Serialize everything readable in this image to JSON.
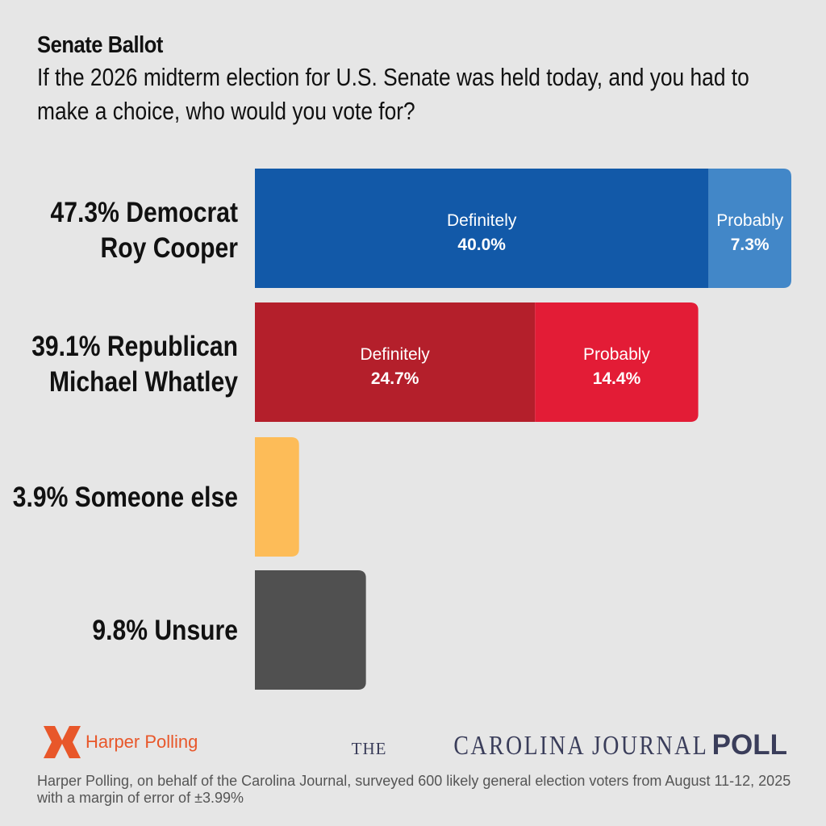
{
  "chart_data": {
    "type": "bar",
    "orientation": "horizontal",
    "stacked": true,
    "title": "Senate Ballot",
    "subtitle": "If the 2026 midterm election for U.S. Senate was held today, and you had to make a choice, who would you vote for?",
    "xlim": [
      0,
      47.3
    ],
    "categories": [
      {
        "line1": "47.3% Democrat",
        "line2": "Roy Cooper",
        "total": 47.3
      },
      {
        "line1": "39.1% Republican",
        "line2": "Michael Whatley",
        "total": 39.1
      },
      {
        "line1": "3.9% Someone else",
        "line2": "",
        "total": 3.9
      },
      {
        "line1": "9.8% Unsure",
        "line2": "",
        "total": 9.8
      }
    ],
    "segments": [
      [
        {
          "name": "Definitely",
          "value": 40.0,
          "label": "40.0%",
          "color": "#1259a8"
        },
        {
          "name": "Probably",
          "value": 7.3,
          "label": "7.3%",
          "color": "#4287c8"
        }
      ],
      [
        {
          "name": "Definitely",
          "value": 24.7,
          "label": "24.7%",
          "color": "#b41f2b"
        },
        {
          "name": "Probably",
          "value": 14.4,
          "label": "14.4%",
          "color": "#e31c36"
        }
      ],
      [
        {
          "name": "",
          "value": 3.9,
          "label": "",
          "color": "#fdbc58"
        }
      ],
      [
        {
          "name": "",
          "value": 9.8,
          "label": "",
          "color": "#505050"
        }
      ]
    ]
  },
  "footer": {
    "pollster": "Harper Polling",
    "publisher_the": "THE",
    "publisher_name": "CAROLINA JOURNAL",
    "publisher_poll": "POLL",
    "note": "Harper Polling, on behalf of the Carolina Journal, surveyed 600 likely general election voters from August 11-12, 2025 with a margin of error of ±3.99%"
  },
  "colors": {
    "background": "#e6e6e6",
    "brand_orange": "#e8572a",
    "brand_navy": "#3a3d5a"
  }
}
